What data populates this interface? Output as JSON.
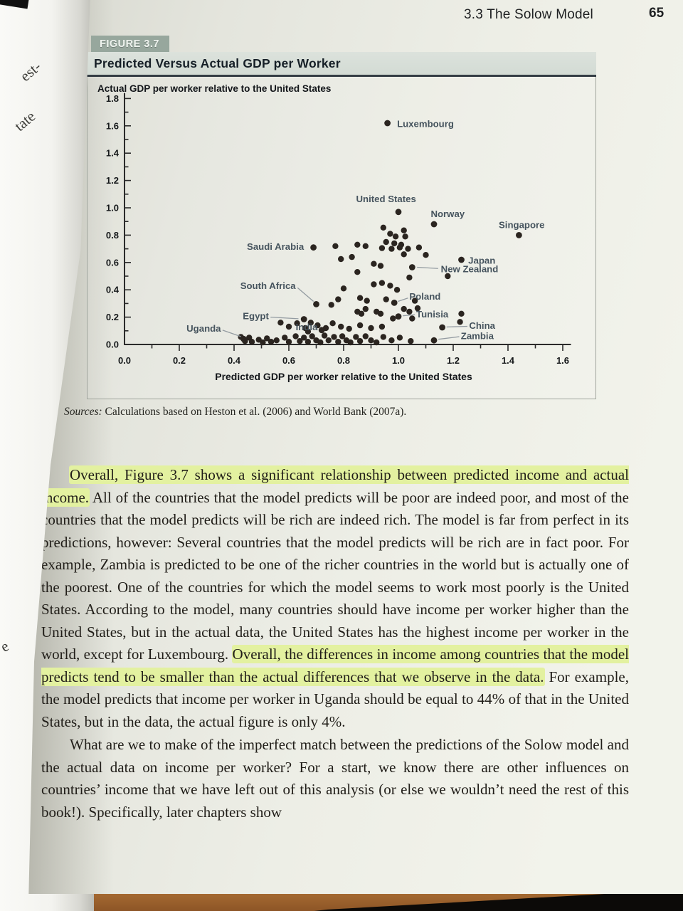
{
  "page": {
    "header": {
      "section_label": "3.3 The Solow Model",
      "page_number": "65"
    },
    "facing_page_fragments": [
      "est-",
      "tate",
      "e"
    ]
  },
  "figure": {
    "tag_label": "FIGURE 3.7",
    "title": "Predicted Versus Actual GDP per Worker",
    "source_prefix": "Sources:",
    "source_text": " Calculations based on Heston et al. (2006) and World Bank (2007a)."
  },
  "chart_data": {
    "type": "scatter",
    "ylabel": "Actual GDP per worker relative to the United States",
    "xlabel": "Predicted GDP per worker relative to the United States",
    "xlim": [
      0,
      1.6
    ],
    "ylim": [
      0,
      1.8
    ],
    "xticks": [
      0.0,
      0.2,
      0.4,
      0.6,
      0.8,
      1.0,
      1.2,
      1.4,
      1.6
    ],
    "yticks": [
      0.0,
      0.2,
      0.4,
      0.6,
      0.8,
      1.0,
      1.2,
      1.4,
      1.6,
      1.8
    ],
    "minor_tick_step": 0.1,
    "grid": false,
    "legend": null,
    "labeled_points": [
      {
        "label": "Luxembourg",
        "x": 0.96,
        "y": 1.62,
        "label_x": 0.995,
        "label_y": 1.615,
        "anchor": "start",
        "leader": null
      },
      {
        "label": "United States",
        "x": 1.0,
        "y": 0.97,
        "label_x": 0.955,
        "label_y": 1.065,
        "anchor": "middle",
        "leader": null
      },
      {
        "label": "Norway",
        "x": 1.13,
        "y": 0.88,
        "label_x": 1.18,
        "label_y": 0.955,
        "anchor": "middle",
        "leader": null
      },
      {
        "label": "Singapore",
        "x": 1.44,
        "y": 0.8,
        "label_x": 1.45,
        "label_y": 0.875,
        "anchor": "middle",
        "leader": null
      },
      {
        "label": "Saudi Arabia",
        "x": 0.69,
        "y": 0.71,
        "label_x": 0.655,
        "label_y": 0.715,
        "anchor": "end",
        "leader": null
      },
      {
        "label": "Japan",
        "x": 1.23,
        "y": 0.62,
        "label_x": 1.255,
        "label_y": 0.615,
        "anchor": "start",
        "leader": null
      },
      {
        "label": "New Zealand",
        "x": 1.05,
        "y": 0.565,
        "label_x": 1.155,
        "label_y": 0.552,
        "anchor": "start",
        "leader": [
          [
            1.068,
            0.565
          ],
          [
            1.145,
            0.556
          ]
        ]
      },
      {
        "label": "South Africa",
        "x": 0.7,
        "y": 0.295,
        "label_x": 0.625,
        "label_y": 0.43,
        "anchor": "end",
        "leader": [
          [
            0.632,
            0.415
          ],
          [
            0.69,
            0.315
          ]
        ]
      },
      {
        "label": "Poland",
        "x": 0.985,
        "y": 0.305,
        "label_x": 1.04,
        "label_y": 0.352,
        "anchor": "start",
        "leader": [
          [
            1.035,
            0.34
          ],
          [
            0.998,
            0.315
          ]
        ]
      },
      {
        "label": "Tunisia",
        "x": 1.0,
        "y": 0.205,
        "label_x": 1.065,
        "label_y": 0.222,
        "anchor": "start",
        "leader": [
          [
            1.06,
            0.218
          ],
          [
            1.016,
            0.21
          ]
        ]
      },
      {
        "label": "Egypt",
        "x": 0.655,
        "y": 0.185,
        "label_x": 0.527,
        "label_y": 0.208,
        "anchor": "end",
        "leader": [
          [
            0.533,
            0.2
          ],
          [
            0.635,
            0.188
          ]
        ]
      },
      {
        "label": "India",
        "x": 0.72,
        "y": 0.105,
        "label_x": 0.705,
        "label_y": 0.128,
        "anchor": "end",
        "leader": null
      },
      {
        "label": "China",
        "x": 1.16,
        "y": 0.125,
        "label_x": 1.258,
        "label_y": 0.138,
        "anchor": "start",
        "leader": [
          [
            1.252,
            0.133
          ],
          [
            1.176,
            0.128
          ]
        ]
      },
      {
        "label": "Zambia",
        "x": 1.13,
        "y": 0.03,
        "label_x": 1.228,
        "label_y": 0.062,
        "anchor": "start",
        "leader": [
          [
            1.222,
            0.057
          ],
          [
            1.146,
            0.038
          ]
        ]
      },
      {
        "label": "Uganda",
        "x": 0.435,
        "y": 0.04,
        "label_x": 0.352,
        "label_y": 0.118,
        "anchor": "end",
        "leader": [
          [
            0.358,
            0.105
          ],
          [
            0.425,
            0.058
          ]
        ]
      }
    ],
    "unlabeled_points": [
      [
        0.945,
        0.855
      ],
      [
        0.97,
        0.81
      ],
      [
        0.99,
        0.79
      ],
      [
        1.02,
        0.835
      ],
      [
        1.025,
        0.79
      ],
      [
        0.955,
        0.75
      ],
      [
        0.985,
        0.74
      ],
      [
        1.01,
        0.73
      ],
      [
        0.94,
        0.705
      ],
      [
        0.975,
        0.7
      ],
      [
        1.005,
        0.71
      ],
      [
        1.035,
        0.7
      ],
      [
        0.88,
        0.72
      ],
      [
        1.075,
        0.71
      ],
      [
        1.1,
        0.655
      ],
      [
        1.02,
        0.66
      ],
      [
        0.85,
        0.73
      ],
      [
        0.77,
        0.72
      ],
      [
        0.83,
        0.64
      ],
      [
        0.79,
        0.625
      ],
      [
        0.91,
        0.59
      ],
      [
        0.935,
        0.575
      ],
      [
        0.85,
        0.53
      ],
      [
        1.04,
        0.49
      ],
      [
        1.18,
        0.5
      ],
      [
        0.8,
        0.41
      ],
      [
        0.78,
        0.33
      ],
      [
        0.755,
        0.29
      ],
      [
        0.91,
        0.44
      ],
      [
        0.94,
        0.45
      ],
      [
        0.97,
        0.43
      ],
      [
        0.995,
        0.4
      ],
      [
        0.86,
        0.34
      ],
      [
        0.885,
        0.32
      ],
      [
        0.955,
        0.33
      ],
      [
        1.06,
        0.32
      ],
      [
        1.02,
        0.26
      ],
      [
        1.04,
        0.24
      ],
      [
        1.07,
        0.265
      ],
      [
        0.85,
        0.24
      ],
      [
        0.865,
        0.225
      ],
      [
        0.88,
        0.26
      ],
      [
        0.92,
        0.24
      ],
      [
        0.935,
        0.225
      ],
      [
        0.98,
        0.19
      ],
      [
        1.05,
        0.19
      ],
      [
        1.23,
        0.225
      ],
      [
        1.225,
        0.165
      ],
      [
        0.57,
        0.16
      ],
      [
        0.6,
        0.13
      ],
      [
        0.63,
        0.155
      ],
      [
        0.66,
        0.12
      ],
      [
        0.68,
        0.16
      ],
      [
        0.705,
        0.14
      ],
      [
        0.735,
        0.12
      ],
      [
        0.76,
        0.155
      ],
      [
        0.79,
        0.13
      ],
      [
        0.82,
        0.115
      ],
      [
        0.86,
        0.14
      ],
      [
        0.9,
        0.12
      ],
      [
        0.94,
        0.13
      ],
      [
        0.67,
        0.095
      ],
      [
        0.425,
        0.055
      ],
      [
        0.44,
        0.025
      ],
      [
        0.455,
        0.05
      ],
      [
        0.465,
        0.02
      ],
      [
        0.49,
        0.035
      ],
      [
        0.505,
        0.015
      ],
      [
        0.52,
        0.045
      ],
      [
        0.535,
        0.02
      ],
      [
        0.555,
        0.03
      ],
      [
        0.585,
        0.05
      ],
      [
        0.6,
        0.02
      ],
      [
        0.625,
        0.06
      ],
      [
        0.64,
        0.025
      ],
      [
        0.655,
        0.05
      ],
      [
        0.67,
        0.02
      ],
      [
        0.685,
        0.06
      ],
      [
        0.7,
        0.03
      ],
      [
        0.715,
        0.015
      ],
      [
        0.73,
        0.065
      ],
      [
        0.745,
        0.03
      ],
      [
        0.765,
        0.055
      ],
      [
        0.78,
        0.02
      ],
      [
        0.795,
        0.06
      ],
      [
        0.81,
        0.03
      ],
      [
        0.825,
        0.015
      ],
      [
        0.845,
        0.055
      ],
      [
        0.86,
        0.025
      ],
      [
        0.88,
        0.06
      ],
      [
        0.9,
        0.03
      ],
      [
        0.92,
        0.015
      ],
      [
        0.945,
        0.055
      ],
      [
        0.975,
        0.03
      ],
      [
        1.005,
        0.05
      ],
      [
        1.045,
        0.025
      ]
    ]
  },
  "body": {
    "paragraphs": [
      {
        "segments": [
          {
            "highlight": true,
            "text": "Overall, Figure 3.7 shows a significant relationship between predicted income and actual income."
          },
          {
            "highlight": false,
            "text": " All of the countries that the model predicts will be poor are indeed poor, and most of the countries that the model predicts will be rich are indeed rich. The model is far from perfect in its predictions, however: Several countries that the model predicts will be rich are in fact poor. For example, Zambia is predicted to be one of the richer countries in the world but is actually one of the poorest. One of the countries for which the model seems to work most poorly is the United States. According to the model, many countries should have income per worker higher than the United States, but in the actual data, the United States has the highest income per worker in the world, except for Luxembourg. "
          },
          {
            "highlight": true,
            "text": "Overall, the differences in income among countries that the model predicts tend to be smaller than the actual differences that we observe in the data."
          },
          {
            "highlight": false,
            "text": " For example, the model predicts that income per worker in Uganda should be equal to 44% of that in the United States, but in the data, the actual figure is only 4%."
          }
        ]
      },
      {
        "segments": [
          {
            "highlight": false,
            "text": "What are we to make of the imperfect match between the predictions of the Solow model and the actual data on income per worker? For a start, we know there are other influences on countries’ income that we have left out of this analysis (or else we wouldn’t need the rest of this book!). Specifically, later chapters show"
          }
        ]
      }
    ]
  },
  "colors": {
    "highlight": "#e3f1a0",
    "figure_tag_bg": "#97a79d",
    "figure_title_bg": "#d6ded7",
    "dot": "#2b2520",
    "country_label": "#46545e",
    "axis": "#2b2b2b",
    "leader_line": "#939ba1"
  }
}
